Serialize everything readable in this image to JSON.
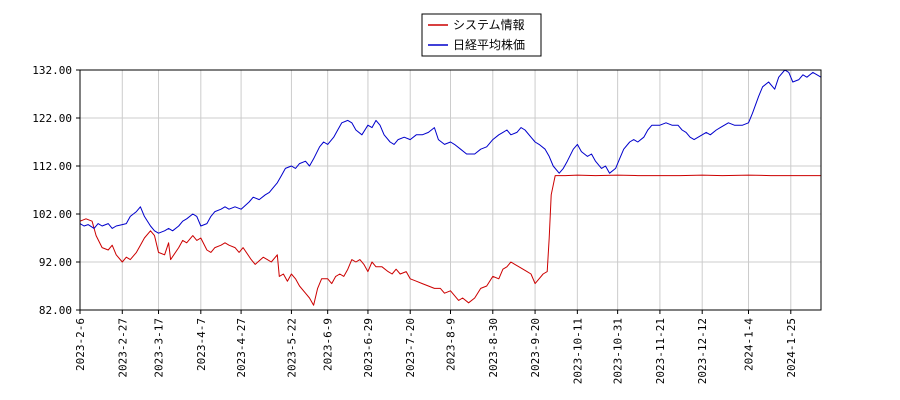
{
  "chart_data": {
    "type": "line",
    "title": "",
    "xlabel": "",
    "ylabel": "",
    "ylim": [
      82,
      132
    ],
    "yticks": [
      82,
      92,
      102,
      112,
      122,
      132
    ],
    "ytick_labels": [
      "82.00",
      "92.00",
      "102.00",
      "112.00",
      "122.00",
      "132.00"
    ],
    "xlim": [
      "2023-02-06",
      "2024-02-09"
    ],
    "xticks": [
      "2023-02-06",
      "2023-02-27",
      "2023-03-17",
      "2023-04-07",
      "2023-04-27",
      "2023-05-22",
      "2023-06-09",
      "2023-06-29",
      "2023-07-20",
      "2023-08-09",
      "2023-08-30",
      "2023-09-20",
      "2023-10-11",
      "2023-10-31",
      "2023-11-21",
      "2023-12-12",
      "2024-01-04",
      "2024-01-25"
    ],
    "xtick_labels": [
      "2023-2-6",
      "2023-2-27",
      "2023-3-17",
      "2023-4-7",
      "2023-4-27",
      "2023-5-22",
      "2023-6-9",
      "2023-6-29",
      "2023-7-20",
      "2023-8-9",
      "2023-8-30",
      "2023-9-20",
      "2023-10-11",
      "2023-10-31",
      "2023-11-21",
      "2023-12-12",
      "2024-1-4",
      "2024-1-25"
    ],
    "grid": true,
    "legend_position": "top-center",
    "series": [
      {
        "name": "システム情報",
        "color": "#cc0000",
        "points": [
          [
            "2023-02-06",
            100.5
          ],
          [
            "2023-02-09",
            101.0
          ],
          [
            "2023-02-12",
            100.5
          ],
          [
            "2023-02-14",
            97.5
          ],
          [
            "2023-02-17",
            95.0
          ],
          [
            "2023-02-20",
            94.5
          ],
          [
            "2023-02-22",
            95.5
          ],
          [
            "2023-02-24",
            93.5
          ],
          [
            "2023-02-27",
            92.0
          ],
          [
            "2023-03-01",
            93.0
          ],
          [
            "2023-03-03",
            92.5
          ],
          [
            "2023-03-06",
            94.0
          ],
          [
            "2023-03-08",
            95.5
          ],
          [
            "2023-03-10",
            97.0
          ],
          [
            "2023-03-13",
            98.5
          ],
          [
            "2023-03-15",
            97.5
          ],
          [
            "2023-03-17",
            94.0
          ],
          [
            "2023-03-20",
            93.5
          ],
          [
            "2023-03-22",
            96.0
          ],
          [
            "2023-03-23",
            92.5
          ],
          [
            "2023-03-27",
            95.0
          ],
          [
            "2023-03-29",
            96.5
          ],
          [
            "2023-03-31",
            96.0
          ],
          [
            "2023-04-03",
            97.5
          ],
          [
            "2023-04-05",
            96.5
          ],
          [
            "2023-04-07",
            97.0
          ],
          [
            "2023-04-10",
            94.5
          ],
          [
            "2023-04-12",
            94.0
          ],
          [
            "2023-04-14",
            95.0
          ],
          [
            "2023-04-17",
            95.5
          ],
          [
            "2023-04-19",
            96.0
          ],
          [
            "2023-04-21",
            95.5
          ],
          [
            "2023-04-24",
            95.0
          ],
          [
            "2023-04-26",
            94.0
          ],
          [
            "2023-04-28",
            95.0
          ],
          [
            "2023-05-02",
            92.5
          ],
          [
            "2023-05-04",
            91.5
          ],
          [
            "2023-05-08",
            93.0
          ],
          [
            "2023-05-10",
            92.5
          ],
          [
            "2023-05-12",
            92.0
          ],
          [
            "2023-05-15",
            93.5
          ],
          [
            "2023-05-16",
            89.0
          ],
          [
            "2023-05-18",
            89.5
          ],
          [
            "2023-05-20",
            88.0
          ],
          [
            "2023-05-22",
            89.5
          ],
          [
            "2023-05-24",
            88.5
          ],
          [
            "2023-05-26",
            87.0
          ],
          [
            "2023-05-29",
            85.5
          ],
          [
            "2023-05-31",
            84.5
          ],
          [
            "2023-06-02",
            83.0
          ],
          [
            "2023-06-04",
            86.5
          ],
          [
            "2023-06-06",
            88.5
          ],
          [
            "2023-06-09",
            88.5
          ],
          [
            "2023-06-11",
            87.5
          ],
          [
            "2023-06-13",
            89.0
          ],
          [
            "2023-06-15",
            89.5
          ],
          [
            "2023-06-17",
            89.0
          ],
          [
            "2023-06-19",
            90.5
          ],
          [
            "2023-06-21",
            92.5
          ],
          [
            "2023-06-23",
            92.0
          ],
          [
            "2023-06-25",
            92.5
          ],
          [
            "2023-06-27",
            91.5
          ],
          [
            "2023-06-29",
            90.0
          ],
          [
            "2023-07-01",
            92.0
          ],
          [
            "2023-07-03",
            91.0
          ],
          [
            "2023-07-06",
            91.0
          ],
          [
            "2023-07-09",
            90.0
          ],
          [
            "2023-07-11",
            89.5
          ],
          [
            "2023-07-13",
            90.5
          ],
          [
            "2023-07-15",
            89.5
          ],
          [
            "2023-07-18",
            90.0
          ],
          [
            "2023-07-20",
            88.5
          ],
          [
            "2023-07-23",
            88.0
          ],
          [
            "2023-07-26",
            87.5
          ],
          [
            "2023-07-29",
            87.0
          ],
          [
            "2023-08-01",
            86.5
          ],
          [
            "2023-08-04",
            86.5
          ],
          [
            "2023-08-06",
            85.5
          ],
          [
            "2023-08-09",
            86.0
          ],
          [
            "2023-08-11",
            85.0
          ],
          [
            "2023-08-13",
            84.0
          ],
          [
            "2023-08-15",
            84.5
          ],
          [
            "2023-08-18",
            83.5
          ],
          [
            "2023-08-21",
            84.5
          ],
          [
            "2023-08-24",
            86.5
          ],
          [
            "2023-08-27",
            87.0
          ],
          [
            "2023-08-30",
            89.0
          ],
          [
            "2023-09-02",
            88.5
          ],
          [
            "2023-09-04",
            90.5
          ],
          [
            "2023-09-06",
            91.0
          ],
          [
            "2023-09-08",
            92.0
          ],
          [
            "2023-09-10",
            91.5
          ],
          [
            "2023-09-12",
            91.0
          ],
          [
            "2023-09-14",
            90.5
          ],
          [
            "2023-09-16",
            90.0
          ],
          [
            "2023-09-18",
            89.5
          ],
          [
            "2023-09-20",
            87.5
          ],
          [
            "2023-09-22",
            88.5
          ],
          [
            "2023-09-24",
            89.5
          ],
          [
            "2023-09-26",
            90.0
          ],
          [
            "2023-09-27",
            97.0
          ],
          [
            "2023-09-28",
            106.0
          ],
          [
            "2023-09-30",
            110.0
          ],
          [
            "2023-10-05",
            110.0
          ],
          [
            "2023-10-11",
            110.1
          ],
          [
            "2023-10-20",
            110.0
          ],
          [
            "2023-10-31",
            110.1
          ],
          [
            "2023-11-10",
            110.0
          ],
          [
            "2023-11-21",
            110.0
          ],
          [
            "2023-12-01",
            110.0
          ],
          [
            "2023-12-12",
            110.1
          ],
          [
            "2023-12-22",
            110.0
          ],
          [
            "2024-01-04",
            110.1
          ],
          [
            "2024-01-15",
            110.0
          ],
          [
            "2024-01-25",
            110.0
          ],
          [
            "2024-02-09",
            110.0
          ]
        ]
      },
      {
        "name": "日経平均株価",
        "color": "#0000cc",
        "points": [
          [
            "2023-02-06",
            100.0
          ],
          [
            "2023-02-08",
            99.5
          ],
          [
            "2023-02-10",
            99.8
          ],
          [
            "2023-02-13",
            99.0
          ],
          [
            "2023-02-15",
            100.0
          ],
          [
            "2023-02-17",
            99.5
          ],
          [
            "2023-02-20",
            100.0
          ],
          [
            "2023-02-22",
            99.0
          ],
          [
            "2023-02-24",
            99.5
          ],
          [
            "2023-02-27",
            99.8
          ],
          [
            "2023-03-01",
            100.0
          ],
          [
            "2023-03-03",
            101.5
          ],
          [
            "2023-03-06",
            102.5
          ],
          [
            "2023-03-08",
            103.5
          ],
          [
            "2023-03-10",
            101.5
          ],
          [
            "2023-03-13",
            99.5
          ],
          [
            "2023-03-15",
            98.5
          ],
          [
            "2023-03-17",
            98.0
          ],
          [
            "2023-03-20",
            98.5
          ],
          [
            "2023-03-22",
            99.0
          ],
          [
            "2023-03-24",
            98.5
          ],
          [
            "2023-03-27",
            99.5
          ],
          [
            "2023-03-29",
            100.5
          ],
          [
            "2023-03-31",
            101.0
          ],
          [
            "2023-04-03",
            102.0
          ],
          [
            "2023-04-05",
            101.5
          ],
          [
            "2023-04-07",
            99.5
          ],
          [
            "2023-04-10",
            100.0
          ],
          [
            "2023-04-12",
            101.5
          ],
          [
            "2023-04-14",
            102.5
          ],
          [
            "2023-04-17",
            103.0
          ],
          [
            "2023-04-19",
            103.5
          ],
          [
            "2023-04-21",
            103.0
          ],
          [
            "2023-04-24",
            103.5
          ],
          [
            "2023-04-27",
            103.0
          ],
          [
            "2023-05-01",
            104.5
          ],
          [
            "2023-05-03",
            105.5
          ],
          [
            "2023-05-06",
            105.0
          ],
          [
            "2023-05-09",
            106.0
          ],
          [
            "2023-05-11",
            106.5
          ],
          [
            "2023-05-13",
            107.5
          ],
          [
            "2023-05-15",
            108.5
          ],
          [
            "2023-05-17",
            110.0
          ],
          [
            "2023-05-19",
            111.5
          ],
          [
            "2023-05-22",
            112.0
          ],
          [
            "2023-05-24",
            111.5
          ],
          [
            "2023-05-26",
            112.5
          ],
          [
            "2023-05-29",
            113.0
          ],
          [
            "2023-05-31",
            112.0
          ],
          [
            "2023-06-02",
            113.5
          ],
          [
            "2023-06-05",
            116.0
          ],
          [
            "2023-06-07",
            117.0
          ],
          [
            "2023-06-09",
            116.5
          ],
          [
            "2023-06-12",
            118.0
          ],
          [
            "2023-06-14",
            119.5
          ],
          [
            "2023-06-16",
            121.0
          ],
          [
            "2023-06-19",
            121.5
          ],
          [
            "2023-06-21",
            121.0
          ],
          [
            "2023-06-23",
            119.5
          ],
          [
            "2023-06-26",
            118.5
          ],
          [
            "2023-06-29",
            120.5
          ],
          [
            "2023-07-01",
            120.0
          ],
          [
            "2023-07-03",
            121.5
          ],
          [
            "2023-07-05",
            120.5
          ],
          [
            "2023-07-07",
            118.5
          ],
          [
            "2023-07-10",
            117.0
          ],
          [
            "2023-07-12",
            116.5
          ],
          [
            "2023-07-14",
            117.5
          ],
          [
            "2023-07-17",
            118.0
          ],
          [
            "2023-07-20",
            117.5
          ],
          [
            "2023-07-23",
            118.5
          ],
          [
            "2023-07-26",
            118.5
          ],
          [
            "2023-07-29",
            119.0
          ],
          [
            "2023-08-01",
            120.0
          ],
          [
            "2023-08-03",
            117.5
          ],
          [
            "2023-08-06",
            116.5
          ],
          [
            "2023-08-09",
            117.0
          ],
          [
            "2023-08-11",
            116.5
          ],
          [
            "2023-08-14",
            115.5
          ],
          [
            "2023-08-17",
            114.5
          ],
          [
            "2023-08-21",
            114.5
          ],
          [
            "2023-08-24",
            115.5
          ],
          [
            "2023-08-27",
            116.0
          ],
          [
            "2023-08-30",
            117.5
          ],
          [
            "2023-09-02",
            118.5
          ],
          [
            "2023-09-04",
            119.0
          ],
          [
            "2023-09-06",
            119.5
          ],
          [
            "2023-09-08",
            118.5
          ],
          [
            "2023-09-11",
            119.0
          ],
          [
            "2023-09-13",
            120.0
          ],
          [
            "2023-09-15",
            119.5
          ],
          [
            "2023-09-18",
            118.0
          ],
          [
            "2023-09-20",
            117.0
          ],
          [
            "2023-09-22",
            116.5
          ],
          [
            "2023-09-25",
            115.5
          ],
          [
            "2023-09-27",
            114.0
          ],
          [
            "2023-09-29",
            112.0
          ],
          [
            "2023-10-02",
            110.5
          ],
          [
            "2023-10-04",
            111.5
          ],
          [
            "2023-10-06",
            113.0
          ],
          [
            "2023-10-09",
            115.5
          ],
          [
            "2023-10-11",
            116.5
          ],
          [
            "2023-10-13",
            115.0
          ],
          [
            "2023-10-16",
            114.0
          ],
          [
            "2023-10-18",
            114.5
          ],
          [
            "2023-10-20",
            113.0
          ],
          [
            "2023-10-23",
            111.5
          ],
          [
            "2023-10-25",
            112.0
          ],
          [
            "2023-10-27",
            110.5
          ],
          [
            "2023-10-30",
            111.5
          ],
          [
            "2023-11-01",
            113.5
          ],
          [
            "2023-11-03",
            115.5
          ],
          [
            "2023-11-06",
            117.0
          ],
          [
            "2023-11-08",
            117.5
          ],
          [
            "2023-11-10",
            117.0
          ],
          [
            "2023-11-13",
            118.0
          ],
          [
            "2023-11-15",
            119.5
          ],
          [
            "2023-11-17",
            120.5
          ],
          [
            "2023-11-21",
            120.5
          ],
          [
            "2023-11-24",
            121.0
          ],
          [
            "2023-11-27",
            120.5
          ],
          [
            "2023-11-30",
            120.5
          ],
          [
            "2023-12-02",
            119.5
          ],
          [
            "2023-12-04",
            119.0
          ],
          [
            "2023-12-06",
            118.0
          ],
          [
            "2023-12-08",
            117.5
          ],
          [
            "2023-12-12",
            118.5
          ],
          [
            "2023-12-14",
            119.0
          ],
          [
            "2023-12-16",
            118.5
          ],
          [
            "2023-12-19",
            119.5
          ],
          [
            "2023-12-21",
            120.0
          ],
          [
            "2023-12-25",
            121.0
          ],
          [
            "2023-12-28",
            120.5
          ],
          [
            "2024-01-01",
            120.5
          ],
          [
            "2024-01-04",
            121.0
          ],
          [
            "2024-01-06",
            123.0
          ],
          [
            "2024-01-09",
            126.5
          ],
          [
            "2024-01-11",
            128.5
          ],
          [
            "2024-01-14",
            129.5
          ],
          [
            "2024-01-17",
            128.0
          ],
          [
            "2024-01-19",
            130.5
          ],
          [
            "2024-01-22",
            132.0
          ],
          [
            "2024-01-24",
            131.5
          ],
          [
            "2024-01-26",
            129.5
          ],
          [
            "2024-01-29",
            130.0
          ],
          [
            "2024-01-31",
            131.0
          ],
          [
            "2024-02-02",
            130.5
          ],
          [
            "2024-02-05",
            131.5
          ],
          [
            "2024-02-07",
            131.0
          ],
          [
            "2024-02-09",
            130.5
          ]
        ]
      }
    ]
  }
}
